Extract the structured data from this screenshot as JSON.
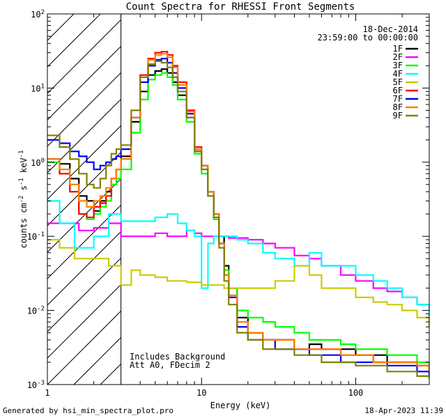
{
  "chart_data": {
    "type": "line",
    "title": "Count Spectra for RHESSI Front Segments",
    "xlabel": "Energy (keV)",
    "ylabel_base": "counts cm",
    "ylabel_exp1": "-2",
    "ylabel_mid": " s",
    "ylabel_exp2": "-1",
    "ylabel_end": " keV",
    "ylabel_exp3": "-1",
    "xscale": "log",
    "yscale": "log",
    "xlim": [
      1,
      300
    ],
    "ylim": [
      0.001,
      100
    ],
    "xticks": [
      {
        "v": 1,
        "label": "1"
      },
      {
        "v": 10,
        "label": "10"
      },
      {
        "v": 100,
        "label": "100"
      }
    ],
    "yticks": [
      {
        "v": 0.001,
        "base": "10",
        "exp": "-3"
      },
      {
        "v": 0.01,
        "base": "10",
        "exp": "-2"
      },
      {
        "v": 0.1,
        "base": "10",
        "exp": "-1"
      },
      {
        "v": 1,
        "base": "10",
        "exp": "0"
      },
      {
        "v": 10,
        "base": "10",
        "exp": "1"
      },
      {
        "v": 100,
        "base": "10",
        "exp": "2"
      }
    ],
    "shaded_below_energy": 3,
    "date": "18-Dec-2014",
    "time_range": "23:59:00 to 00:00:00",
    "annotations": [
      "Includes Background",
      "Att A0, FDecim 2"
    ],
    "series": [
      {
        "name": "1F",
        "color": "#000000",
        "x": [
          1.0,
          1.2,
          1.4,
          1.6,
          1.8,
          2.0,
          2.2,
          2.4,
          2.6,
          2.8,
          3.0,
          3.5,
          4.0,
          4.5,
          5.0,
          5.5,
          6.0,
          6.5,
          7.0,
          8.0,
          9.0,
          10,
          11,
          12,
          13,
          14,
          15,
          17,
          20,
          25,
          30,
          40,
          50,
          60,
          80,
          100,
          130,
          160,
          200,
          250,
          300
        ],
        "y": [
          1.1,
          0.95,
          0.6,
          0.35,
          0.3,
          0.22,
          0.3,
          0.4,
          0.6,
          0.8,
          1.2,
          3.5,
          9,
          15,
          17,
          18,
          16,
          12,
          8,
          4,
          1.4,
          0.9,
          0.4,
          0.2,
          0.1,
          0.04,
          0.02,
          0.008,
          0.005,
          0.004,
          0.004,
          0.003,
          0.0035,
          0.003,
          0.003,
          0.0025,
          0.0025,
          0.002,
          0.002,
          0.0018,
          0.0015
        ]
      },
      {
        "name": "2F",
        "color": "#ff00ff",
        "x": [
          1.0,
          1.3,
          1.6,
          2.0,
          2.5,
          3.0,
          4.0,
          5.0,
          6.0,
          7.0,
          8.0,
          9.0,
          10,
          12,
          15,
          20,
          25,
          30,
          40,
          50,
          60,
          80,
          100,
          130,
          160,
          200,
          250,
          300
        ],
        "y": [
          0.15,
          0.15,
          0.12,
          0.13,
          0.15,
          0.1,
          0.1,
          0.11,
          0.1,
          0.1,
          0.12,
          0.11,
          0.1,
          0.1,
          0.095,
          0.09,
          0.08,
          0.07,
          0.055,
          0.05,
          0.04,
          0.03,
          0.025,
          0.02,
          0.018,
          0.015,
          0.012,
          0.01
        ]
      },
      {
        "name": "3F",
        "color": "#00ff00",
        "x": [
          1.0,
          1.2,
          1.4,
          1.6,
          1.8,
          2.0,
          2.2,
          2.4,
          2.6,
          2.8,
          3.0,
          3.5,
          4.0,
          4.5,
          5.0,
          5.5,
          6.0,
          6.5,
          7.0,
          8.0,
          9.0,
          10,
          11,
          12,
          13,
          14,
          15,
          17,
          20,
          25,
          30,
          40,
          50,
          60,
          80,
          100,
          130,
          160,
          200,
          250,
          300
        ],
        "y": [
          1.0,
          0.7,
          0.4,
          0.2,
          0.17,
          0.2,
          0.25,
          0.3,
          0.5,
          0.6,
          0.8,
          2.5,
          7,
          13,
          15,
          16,
          14,
          11,
          7,
          3.5,
          1.3,
          0.7,
          0.35,
          0.17,
          0.08,
          0.035,
          0.02,
          0.01,
          0.008,
          0.007,
          0.006,
          0.005,
          0.004,
          0.004,
          0.0035,
          0.003,
          0.003,
          0.0025,
          0.0025,
          0.002,
          0.0018
        ]
      },
      {
        "name": "4F",
        "color": "#00ffff",
        "x": [
          1.0,
          1.2,
          1.5,
          2.0,
          2.5,
          3.0,
          4.0,
          5.0,
          6.0,
          7.0,
          8.0,
          9.0,
          10,
          11,
          12,
          14,
          17,
          20,
          25,
          30,
          40,
          50,
          60,
          80,
          100,
          130,
          160,
          200,
          250,
          300
        ],
        "y": [
          0.3,
          0.15,
          0.07,
          0.1,
          0.2,
          0.16,
          0.16,
          0.18,
          0.2,
          0.15,
          0.12,
          0.1,
          0.02,
          0.08,
          0.1,
          0.1,
          0.09,
          0.08,
          0.06,
          0.05,
          0.04,
          0.06,
          0.04,
          0.04,
          0.03,
          0.025,
          0.02,
          0.015,
          0.012,
          0.008
        ]
      },
      {
        "name": "5F",
        "color": "#cccc00",
        "x": [
          1.0,
          1.2,
          1.5,
          2.0,
          2.5,
          3.0,
          3.5,
          4.0,
          5.0,
          6.0,
          7.0,
          8.0,
          9.0,
          10,
          12,
          14,
          17,
          20,
          25,
          30,
          40,
          50,
          60,
          80,
          100,
          130,
          160,
          200,
          250,
          300
        ],
        "y": [
          0.09,
          0.07,
          0.05,
          0.05,
          0.04,
          0.022,
          0.035,
          0.03,
          0.028,
          0.025,
          0.025,
          0.024,
          0.024,
          0.022,
          0.022,
          0.02,
          0.02,
          0.02,
          0.02,
          0.025,
          0.04,
          0.03,
          0.02,
          0.02,
          0.015,
          0.013,
          0.012,
          0.01,
          0.008,
          0.006
        ]
      },
      {
        "name": "6F",
        "color": "#ff0000",
        "x": [
          1.0,
          1.2,
          1.4,
          1.6,
          1.8,
          2.0,
          2.2,
          2.4,
          2.6,
          2.8,
          3.0,
          3.5,
          4.0,
          4.5,
          5.0,
          5.5,
          6.0,
          6.5,
          7.0,
          8.0,
          9.0,
          10,
          11,
          12,
          13,
          14,
          15,
          17,
          20,
          25,
          30,
          40,
          50,
          60,
          80,
          100,
          130,
          160,
          200,
          250,
          300
        ],
        "y": [
          1.1,
          0.7,
          0.4,
          0.2,
          0.18,
          0.25,
          0.28,
          0.35,
          0.6,
          0.8,
          1.1,
          4,
          15,
          25,
          30,
          31,
          28,
          20,
          12,
          5,
          1.6,
          0.9,
          0.4,
          0.2,
          0.08,
          0.03,
          0.015,
          0.006,
          0.005,
          0.004,
          0.004,
          0.003,
          0.003,
          0.003,
          0.0025,
          0.0025,
          0.002,
          0.002,
          0.002,
          0.0018,
          0.0015
        ]
      },
      {
        "name": "7F",
        "color": "#0000ff",
        "x": [
          1.0,
          1.2,
          1.4,
          1.6,
          1.8,
          2.0,
          2.2,
          2.4,
          2.6,
          2.8,
          3.0,
          3.5,
          4.0,
          4.5,
          5.0,
          5.5,
          6.0,
          6.5,
          7.0,
          8.0,
          9.0,
          10,
          11,
          12,
          13,
          14,
          15,
          17,
          20,
          25,
          30,
          40,
          50,
          60,
          80,
          100,
          130,
          160,
          200,
          250,
          300
        ],
        "y": [
          2.0,
          1.8,
          1.4,
          1.2,
          1.0,
          0.8,
          0.9,
          1.0,
          1.1,
          1.2,
          1.5,
          4,
          12,
          20,
          24,
          25,
          22,
          16,
          10,
          4.5,
          1.5,
          0.9,
          0.4,
          0.2,
          0.08,
          0.03,
          0.015,
          0.006,
          0.004,
          0.004,
          0.003,
          0.003,
          0.0025,
          0.0025,
          0.002,
          0.002,
          0.002,
          0.0018,
          0.0018,
          0.0015,
          0.0012
        ]
      },
      {
        "name": "8F",
        "color": "#ff8000",
        "x": [
          1.0,
          1.2,
          1.4,
          1.6,
          1.8,
          2.0,
          2.2,
          2.4,
          2.6,
          2.8,
          3.0,
          3.5,
          4.0,
          4.5,
          5.0,
          5.5,
          6.0,
          6.5,
          7.0,
          8.0,
          9.0,
          10,
          11,
          12,
          13,
          14,
          15,
          17,
          20,
          25,
          30,
          40,
          50,
          60,
          80,
          100,
          130,
          160,
          200,
          250,
          300
        ],
        "y": [
          1.1,
          0.8,
          0.5,
          0.3,
          0.25,
          0.3,
          0.35,
          0.45,
          0.6,
          0.8,
          1.1,
          4,
          14,
          24,
          28,
          29,
          26,
          19,
          11,
          4.8,
          1.5,
          0.9,
          0.4,
          0.2,
          0.08,
          0.03,
          0.016,
          0.007,
          0.005,
          0.004,
          0.004,
          0.003,
          0.003,
          0.003,
          0.0025,
          0.0025,
          0.002,
          0.002,
          0.002,
          0.0018,
          0.0015
        ]
      },
      {
        "name": "9F",
        "color": "#808000",
        "x": [
          1.0,
          1.2,
          1.4,
          1.6,
          1.8,
          2.0,
          2.2,
          2.4,
          2.6,
          2.8,
          3.0,
          3.5,
          4.0,
          4.5,
          5.0,
          5.5,
          6.0,
          6.5,
          7.0,
          8.0,
          9.0,
          10,
          11,
          12,
          13,
          14,
          15,
          17,
          20,
          25,
          30,
          40,
          50,
          60,
          80,
          100,
          130,
          160,
          200,
          250,
          300
        ],
        "y": [
          2.3,
          1.6,
          1.1,
          0.7,
          0.5,
          0.45,
          0.6,
          0.9,
          1.3,
          1.5,
          1.7,
          5,
          14,
          21,
          23,
          22,
          19,
          14,
          9,
          4,
          1.4,
          0.8,
          0.35,
          0.18,
          0.07,
          0.025,
          0.012,
          0.005,
          0.004,
          0.003,
          0.003,
          0.0025,
          0.0025,
          0.002,
          0.002,
          0.0018,
          0.0018,
          0.0015,
          0.0015,
          0.0013,
          0.0012
        ]
      }
    ]
  },
  "footer": {
    "generated_by": "Generated by hsi_min_spectra_plot.pro",
    "timestamp": "18-Apr-2023 11:39"
  }
}
